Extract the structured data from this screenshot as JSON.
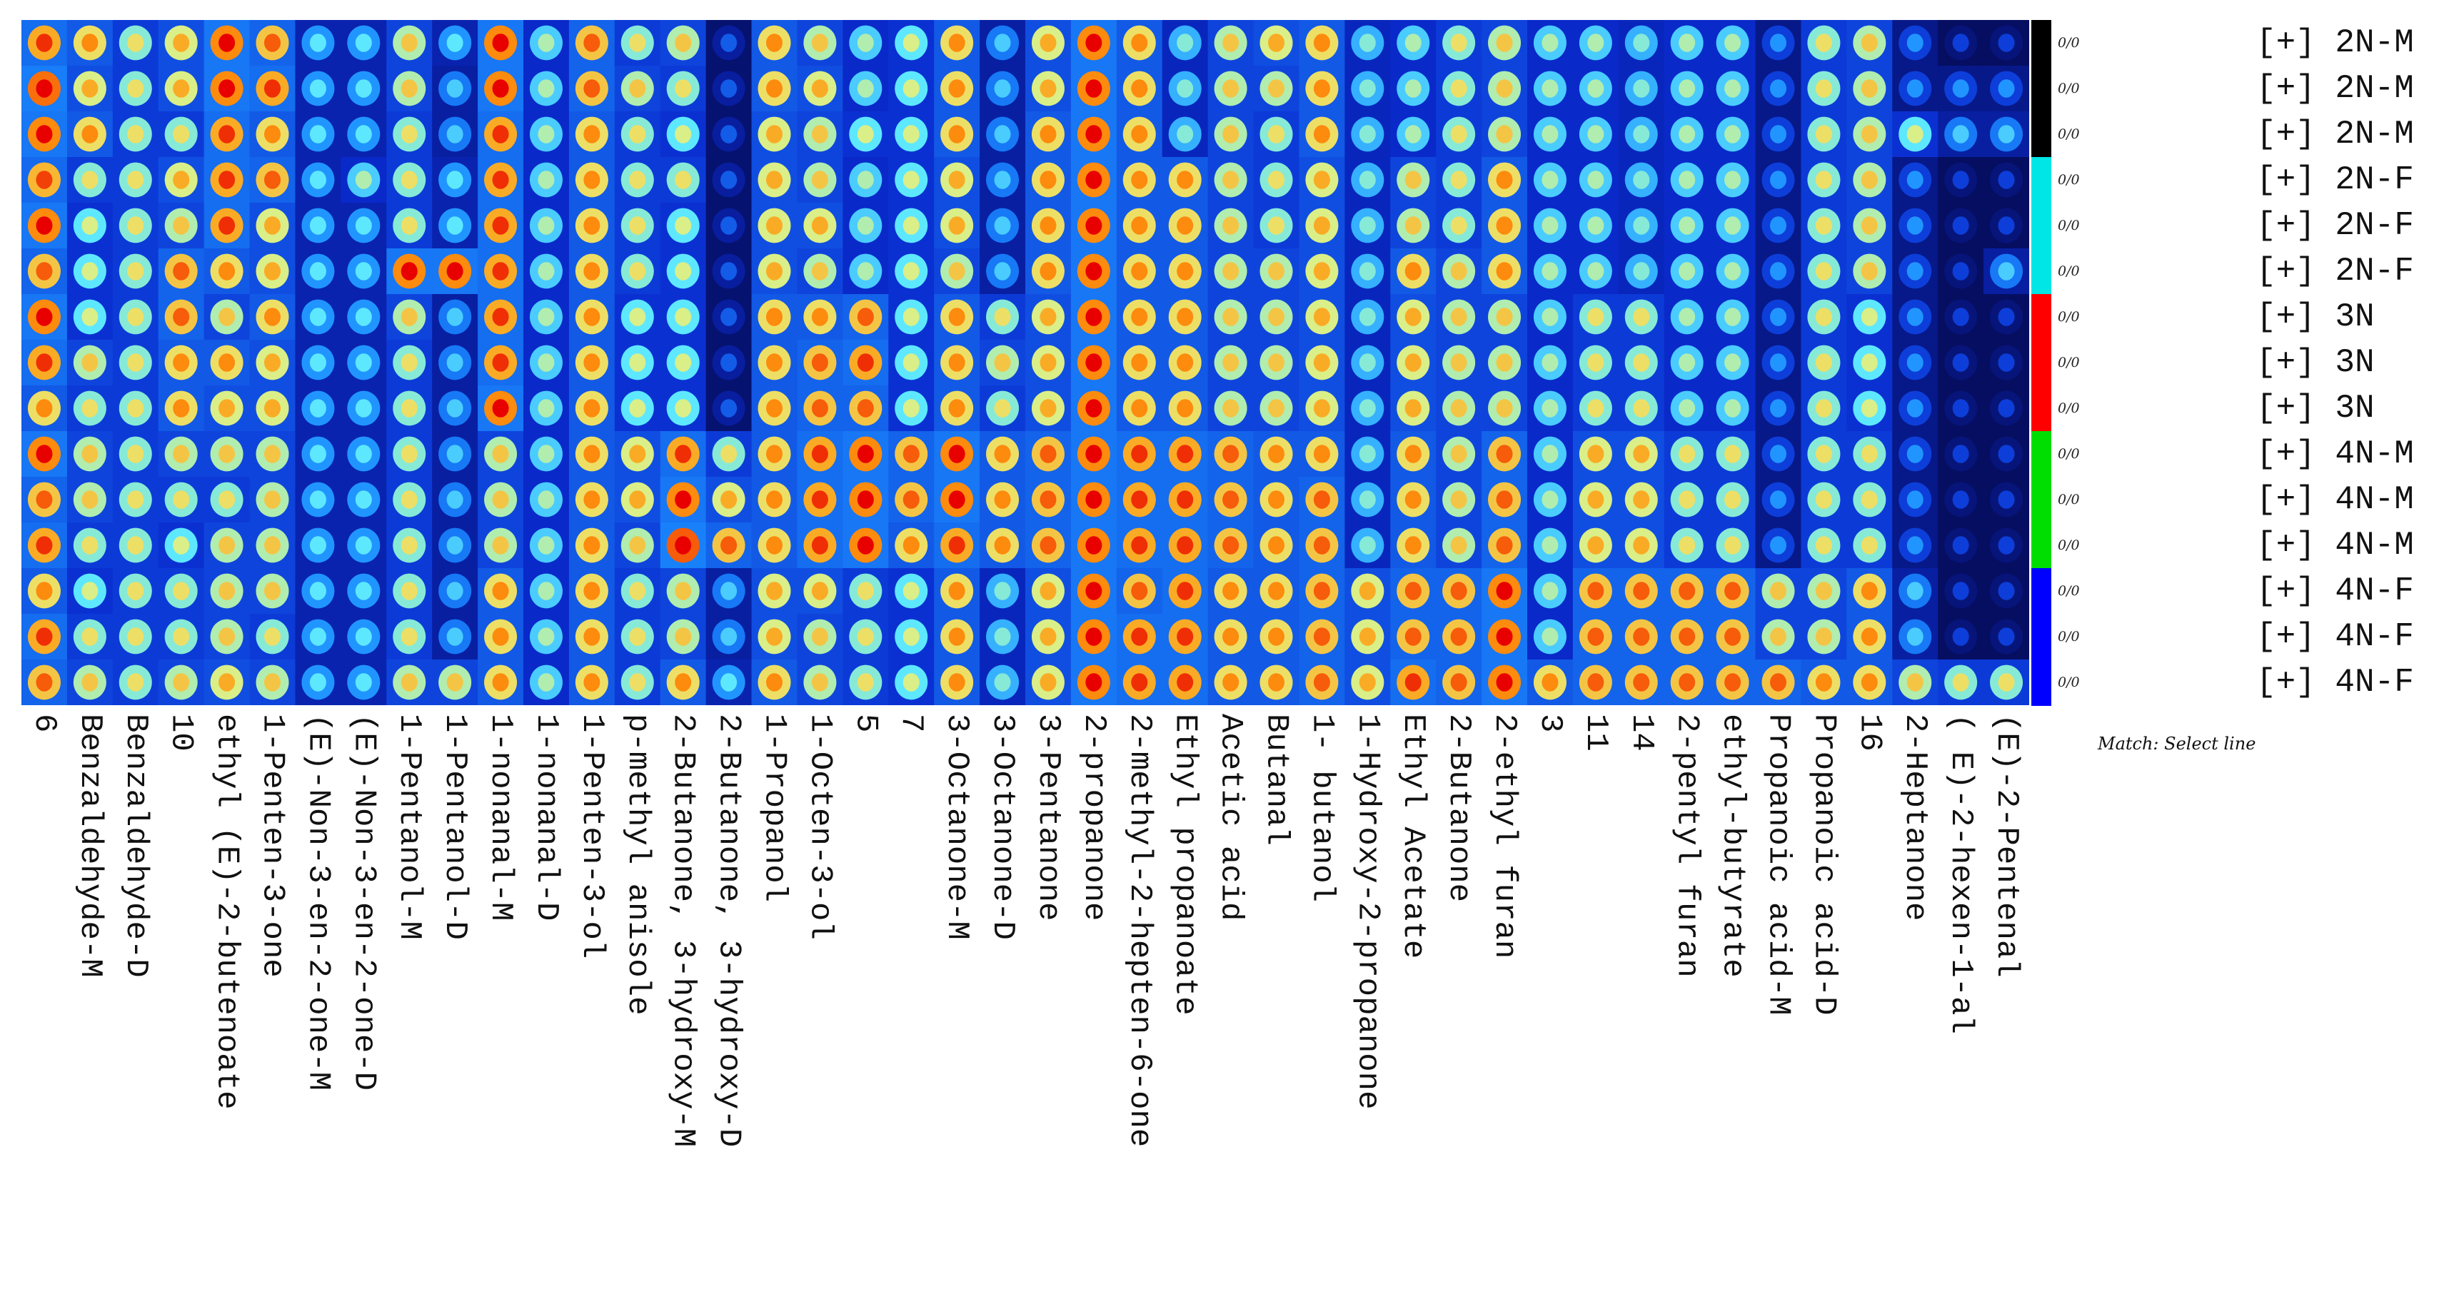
{
  "chart_data": {
    "type": "heatmap",
    "title": "",
    "xlabel": "",
    "ylabel": "",
    "columns": [
      "6",
      "Benzaldehyde-M",
      "Benzaldehyde-D",
      "10",
      "ethyl (E)-2-butenoate",
      "1-Penten-3-one",
      "(E)-Non-3-en-2-one-M",
      "(E)-Non-3-en-2-one-D",
      "1-Pentanol-M",
      "1-Pentanol-D",
      "1-nonanal-M",
      "1-nonanal-D",
      "1-Penten-3-ol",
      "p-methyl anisole",
      "2-Butanone, 3-hydroxy-M",
      "2-Butanone, 3-hydroxy-D",
      "1-Propanol",
      "1-Octen-3-ol",
      "5",
      "7",
      "3-Octanone-M",
      "3-Octanone-D",
      "3-Pentanone",
      "2-propanone",
      "2-methyl-2-hepten-6-one",
      "Ethyl propanoate",
      "Acetic acid",
      "Butanal",
      "1- butanol",
      "1-Hydroxy-2-propanone",
      "Ethyl Acetate",
      "2-Butanone",
      "2-ethyl furan",
      "3",
      "11",
      "14",
      "2-pentyl furan",
      "ethyl-butyrate",
      "Propanoic acid-M",
      "Propanoic acid-D",
      "16",
      "2-Heptanone",
      "( E)-2-hexen-1-al",
      "(E)-2-Pentenal"
    ],
    "rows": [
      {
        "label": "[+] 2N-M",
        "group": "2N-M",
        "fraction": "0/0"
      },
      {
        "label": "[+] 2N-M",
        "group": "2N-M",
        "fraction": "0/0"
      },
      {
        "label": "[+] 2N-M",
        "group": "2N-M",
        "fraction": "0/0"
      },
      {
        "label": "[+] 2N-F",
        "group": "2N-F",
        "fraction": "0/0"
      },
      {
        "label": "[+] 2N-F",
        "group": "2N-F",
        "fraction": "0/0"
      },
      {
        "label": "[+] 2N-F",
        "group": "2N-F",
        "fraction": "0/0"
      },
      {
        "label": "[+] 3N",
        "group": "3N",
        "fraction": "0/0"
      },
      {
        "label": "[+] 3N",
        "group": "3N",
        "fraction": "0/0"
      },
      {
        "label": "[+] 3N",
        "group": "3N",
        "fraction": "0/0"
      },
      {
        "label": "[+] 4N-M",
        "group": "4N-M",
        "fraction": "0/0"
      },
      {
        "label": "[+] 4N-M",
        "group": "4N-M",
        "fraction": "0/0"
      },
      {
        "label": "[+] 4N-M",
        "group": "4N-M",
        "fraction": "0/0"
      },
      {
        "label": "[+] 4N-F",
        "group": "4N-F",
        "fraction": "0/0"
      },
      {
        "label": "[+] 4N-F",
        "group": "4N-F",
        "fraction": "0/0"
      },
      {
        "label": "[+] 4N-F",
        "group": "4N-F",
        "fraction": "0/0"
      }
    ],
    "group_colors": {
      "2N-M": "#000000",
      "2N-F": "#00e5e5",
      "3N": "#ff0000",
      "4N-M": "#00dd00",
      "4N-F": "#0000ff"
    },
    "colormap": [
      "#050b55",
      "#0a2bd0",
      "#1a8cff",
      "#5ee8ff",
      "#e8f07a",
      "#ff9a10",
      "#e80000"
    ],
    "intensity": [
      [
        0.8,
        0.88,
        0.85,
        0.78,
        0.85,
        0.75,
        0.85,
        0.8,
        0.7,
        0.85,
        0.75,
        0.8,
        0.7,
        0.8,
        0.75
      ],
      [
        0.7,
        0.65,
        0.7,
        0.55,
        0.5,
        0.5,
        0.5,
        0.6,
        0.55,
        0.6,
        0.6,
        0.55,
        0.5,
        0.55,
        0.6
      ],
      [
        0.55,
        0.55,
        0.55,
        0.55,
        0.55,
        0.55,
        0.55,
        0.55,
        0.55,
        0.55,
        0.55,
        0.55,
        0.55,
        0.55,
        0.55
      ],
      [
        0.65,
        0.65,
        0.55,
        0.65,
        0.6,
        0.75,
        0.75,
        0.7,
        0.7,
        0.6,
        0.55,
        0.5,
        0.55,
        0.55,
        0.6
      ],
      [
        0.85,
        0.85,
        0.8,
        0.8,
        0.8,
        0.7,
        0.6,
        0.7,
        0.65,
        0.6,
        0.55,
        0.6,
        0.6,
        0.6,
        0.65
      ],
      [
        0.75,
        0.8,
        0.7,
        0.75,
        0.65,
        0.65,
        0.7,
        0.65,
        0.65,
        0.6,
        0.6,
        0.6,
        0.6,
        0.55,
        0.6
      ],
      [
        0.35,
        0.35,
        0.35,
        0.35,
        0.35,
        0.35,
        0.35,
        0.35,
        0.35,
        0.35,
        0.35,
        0.35,
        0.35,
        0.35,
        0.35
      ],
      [
        0.35,
        0.35,
        0.35,
        0.45,
        0.35,
        0.35,
        0.35,
        0.35,
        0.35,
        0.35,
        0.35,
        0.35,
        0.35,
        0.35,
        0.35
      ],
      [
        0.6,
        0.6,
        0.55,
        0.55,
        0.55,
        0.85,
        0.6,
        0.55,
        0.55,
        0.55,
        0.55,
        0.55,
        0.55,
        0.55,
        0.6
      ],
      [
        0.35,
        0.3,
        0.3,
        0.35,
        0.35,
        0.85,
        0.3,
        0.3,
        0.3,
        0.3,
        0.3,
        0.3,
        0.3,
        0.3,
        0.6
      ],
      [
        0.85,
        0.85,
        0.8,
        0.8,
        0.8,
        0.8,
        0.8,
        0.8,
        0.85,
        0.6,
        0.6,
        0.6,
        0.7,
        0.7,
        0.7
      ],
      [
        0.45,
        0.45,
        0.45,
        0.45,
        0.45,
        0.45,
        0.45,
        0.45,
        0.45,
        0.45,
        0.45,
        0.45,
        0.45,
        0.45,
        0.45
      ],
      [
        0.75,
        0.75,
        0.7,
        0.7,
        0.7,
        0.7,
        0.7,
        0.7,
        0.7,
        0.7,
        0.7,
        0.7,
        0.7,
        0.7,
        0.7
      ],
      [
        0.55,
        0.6,
        0.55,
        0.55,
        0.55,
        0.55,
        0.5,
        0.5,
        0.5,
        0.65,
        0.65,
        0.6,
        0.55,
        0.55,
        0.55
      ],
      [
        0.6,
        0.55,
        0.5,
        0.55,
        0.5,
        0.5,
        0.5,
        0.5,
        0.5,
        0.8,
        0.85,
        0.9,
        0.6,
        0.6,
        0.7
      ],
      [
        0.1,
        0.1,
        0.1,
        0.1,
        0.1,
        0.1,
        0.1,
        0.1,
        0.1,
        0.55,
        0.65,
        0.75,
        0.3,
        0.3,
        0.35
      ],
      [
        0.7,
        0.7,
        0.65,
        0.65,
        0.65,
        0.65,
        0.7,
        0.7,
        0.7,
        0.7,
        0.7,
        0.7,
        0.65,
        0.65,
        0.7
      ],
      [
        0.6,
        0.65,
        0.6,
        0.6,
        0.65,
        0.6,
        0.7,
        0.75,
        0.75,
        0.8,
        0.8,
        0.8,
        0.65,
        0.6,
        0.6
      ],
      [
        0.45,
        0.45,
        0.5,
        0.45,
        0.45,
        0.45,
        0.75,
        0.8,
        0.75,
        0.85,
        0.85,
        0.85,
        0.55,
        0.55,
        0.55
      ],
      [
        0.5,
        0.5,
        0.5,
        0.5,
        0.5,
        0.5,
        0.5,
        0.5,
        0.5,
        0.75,
        0.75,
        0.7,
        0.5,
        0.5,
        0.5
      ],
      [
        0.7,
        0.7,
        0.7,
        0.65,
        0.65,
        0.6,
        0.7,
        0.7,
        0.7,
        0.85,
        0.85,
        0.8,
        0.7,
        0.7,
        0.7
      ],
      [
        0.3,
        0.3,
        0.3,
        0.3,
        0.3,
        0.3,
        0.55,
        0.6,
        0.55,
        0.7,
        0.7,
        0.7,
        0.4,
        0.4,
        0.4
      ],
      [
        0.65,
        0.65,
        0.7,
        0.7,
        0.7,
        0.7,
        0.65,
        0.65,
        0.65,
        0.75,
        0.75,
        0.75,
        0.65,
        0.65,
        0.65
      ],
      [
        0.85,
        0.85,
        0.85,
        0.85,
        0.85,
        0.85,
        0.85,
        0.85,
        0.85,
        0.85,
        0.85,
        0.85,
        0.85,
        0.85,
        0.85
      ],
      [
        0.7,
        0.7,
        0.7,
        0.7,
        0.7,
        0.7,
        0.7,
        0.7,
        0.7,
        0.8,
        0.8,
        0.8,
        0.75,
        0.8,
        0.8
      ],
      [
        0.4,
        0.4,
        0.4,
        0.7,
        0.7,
        0.7,
        0.7,
        0.7,
        0.7,
        0.8,
        0.8,
        0.8,
        0.8,
        0.8,
        0.8
      ],
      [
        0.6,
        0.6,
        0.6,
        0.6,
        0.6,
        0.6,
        0.6,
        0.6,
        0.6,
        0.75,
        0.75,
        0.75,
        0.7,
        0.7,
        0.7
      ],
      [
        0.65,
        0.6,
        0.55,
        0.55,
        0.55,
        0.6,
        0.6,
        0.6,
        0.6,
        0.7,
        0.7,
        0.7,
        0.7,
        0.7,
        0.7
      ],
      [
        0.7,
        0.7,
        0.7,
        0.65,
        0.65,
        0.65,
        0.65,
        0.65,
        0.65,
        0.7,
        0.75,
        0.75,
        0.75,
        0.75,
        0.75
      ],
      [
        0.4,
        0.4,
        0.4,
        0.4,
        0.4,
        0.4,
        0.4,
        0.4,
        0.4,
        0.4,
        0.4,
        0.4,
        0.65,
        0.65,
        0.65
      ],
      [
        0.45,
        0.45,
        0.45,
        0.6,
        0.6,
        0.7,
        0.65,
        0.65,
        0.65,
        0.7,
        0.7,
        0.7,
        0.75,
        0.75,
        0.8
      ],
      [
        0.55,
        0.55,
        0.55,
        0.55,
        0.55,
        0.6,
        0.6,
        0.6,
        0.6,
        0.6,
        0.6,
        0.6,
        0.75,
        0.75,
        0.75
      ],
      [
        0.6,
        0.6,
        0.6,
        0.7,
        0.7,
        0.7,
        0.6,
        0.6,
        0.6,
        0.75,
        0.75,
        0.75,
        0.85,
        0.85,
        0.85
      ],
      [
        0.45,
        0.45,
        0.45,
        0.45,
        0.45,
        0.45,
        0.45,
        0.45,
        0.45,
        0.45,
        0.45,
        0.45,
        0.45,
        0.45,
        0.7
      ],
      [
        0.45,
        0.45,
        0.45,
        0.45,
        0.45,
        0.45,
        0.55,
        0.55,
        0.55,
        0.65,
        0.65,
        0.65,
        0.75,
        0.75,
        0.75
      ],
      [
        0.4,
        0.4,
        0.4,
        0.4,
        0.4,
        0.4,
        0.55,
        0.55,
        0.55,
        0.65,
        0.65,
        0.65,
        0.75,
        0.75,
        0.75
      ],
      [
        0.45,
        0.45,
        0.45,
        0.45,
        0.45,
        0.45,
        0.45,
        0.45,
        0.45,
        0.55,
        0.55,
        0.55,
        0.75,
        0.75,
        0.75
      ],
      [
        0.45,
        0.45,
        0.45,
        0.45,
        0.45,
        0.45,
        0.45,
        0.45,
        0.45,
        0.55,
        0.55,
        0.55,
        0.75,
        0.75,
        0.75
      ],
      [
        0.2,
        0.2,
        0.2,
        0.2,
        0.2,
        0.2,
        0.2,
        0.2,
        0.2,
        0.2,
        0.2,
        0.2,
        0.6,
        0.6,
        0.75
      ],
      [
        0.55,
        0.55,
        0.55,
        0.55,
        0.55,
        0.55,
        0.55,
        0.55,
        0.55,
        0.55,
        0.55,
        0.55,
        0.6,
        0.6,
        0.7
      ],
      [
        0.6,
        0.6,
        0.6,
        0.6,
        0.6,
        0.6,
        0.5,
        0.5,
        0.5,
        0.55,
        0.55,
        0.55,
        0.7,
        0.7,
        0.7
      ],
      [
        0.2,
        0.2,
        0.5,
        0.2,
        0.2,
        0.2,
        0.2,
        0.2,
        0.2,
        0.2,
        0.2,
        0.2,
        0.3,
        0.3,
        0.6
      ],
      [
        0.05,
        0.2,
        0.3,
        0.05,
        0.05,
        0.05,
        0.05,
        0.05,
        0.05,
        0.05,
        0.05,
        0.05,
        0.05,
        0.05,
        0.55
      ],
      [
        0.05,
        0.2,
        0.3,
        0.05,
        0.05,
        0.3,
        0.05,
        0.05,
        0.05,
        0.05,
        0.05,
        0.05,
        0.05,
        0.05,
        0.55
      ]
    ]
  },
  "legend": {
    "match_label": "Match: Select line"
  }
}
